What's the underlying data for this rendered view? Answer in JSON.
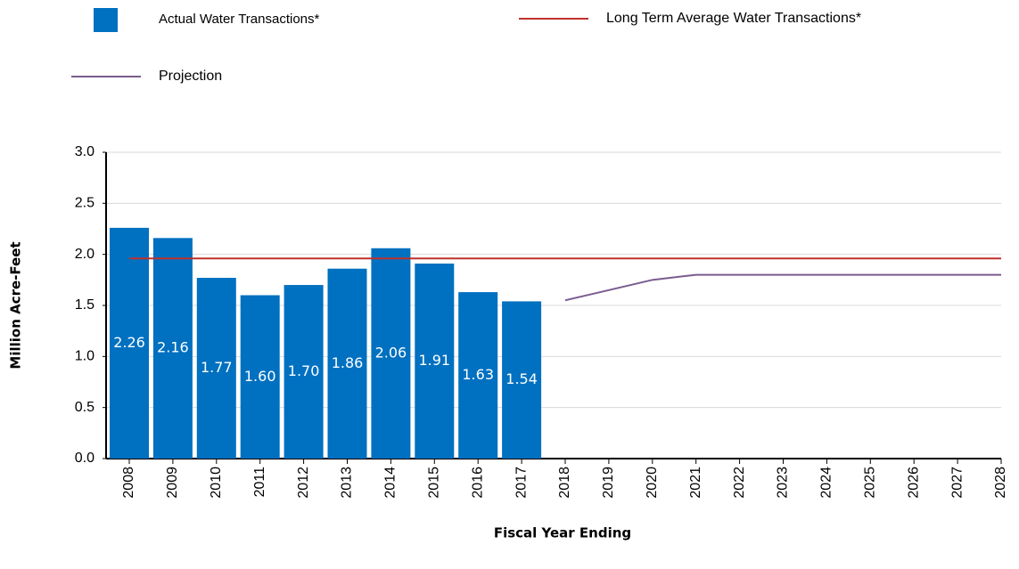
{
  "chart_data": {
    "type": "bar",
    "y_label": "Million Acre-Feet",
    "x_label": "Fiscal Year Ending",
    "categories": [
      "2008",
      "2009",
      "2010",
      "2011",
      "2012",
      "2013",
      "2014",
      "2015",
      "2016",
      "2017",
      "2018",
      "2019",
      "2020",
      "2021",
      "2022",
      "2023",
      "2024",
      "2025",
      "2026",
      "2027",
      "2028"
    ],
    "series": [
      {
        "name": "Actual Water Transactions*",
        "type": "bar",
        "color": "#0070c0",
        "values": [
          2.26,
          2.16,
          1.77,
          1.6,
          1.7,
          1.86,
          2.06,
          1.91,
          1.63,
          1.54,
          null,
          null,
          null,
          null,
          null,
          null,
          null,
          null,
          null,
          null,
          null
        ],
        "value_labels": [
          "2.26",
          "2.16",
          "1.77",
          "1.60",
          "1.70",
          "1.86",
          "2.06",
          "1.91",
          "1.63",
          "1.54",
          null,
          null,
          null,
          null,
          null,
          null,
          null,
          null,
          null,
          null,
          null
        ]
      },
      {
        "name": "Long Term Average Water Transactions*",
        "type": "line",
        "color": "#c0312b",
        "values": [
          1.96,
          1.96,
          1.96,
          1.96,
          1.96,
          1.96,
          1.96,
          1.96,
          1.96,
          1.96,
          1.96,
          1.96,
          1.96,
          1.96,
          1.96,
          1.96,
          1.96,
          1.96,
          1.96,
          1.96,
          1.96
        ]
      },
      {
        "name": "Projection",
        "type": "line",
        "color": "#7a5c8f",
        "values": [
          null,
          null,
          null,
          null,
          null,
          null,
          null,
          null,
          null,
          null,
          1.55,
          1.65,
          1.75,
          1.8,
          1.8,
          1.8,
          1.8,
          1.8,
          1.8,
          1.8,
          1.8
        ]
      }
    ],
    "ylim": [
      0,
      3
    ],
    "yticks": [
      {
        "value": 0,
        "label": "0.0"
      },
      0.5,
      {
        "value": 1,
        "label": "1.0"
      },
      1.5,
      {
        "value": 2,
        "label": "2.0"
      },
      2.5,
      {
        "value": 3,
        "label": "3.0"
      }
    ],
    "grid": true
  }
}
